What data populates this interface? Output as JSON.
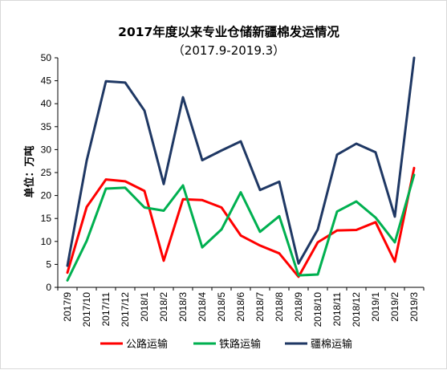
{
  "chart_data": {
    "type": "line",
    "title": "2017年度以来专业仓储新疆棉发运情况",
    "subtitle": "（2017.9-2019.3）",
    "ylabel": "单位：万吨",
    "xlabel": "",
    "ylim": [
      0,
      50
    ],
    "yticks": [
      0,
      5,
      10,
      15,
      20,
      25,
      30,
      35,
      40,
      45,
      50
    ],
    "grid": false,
    "legend": "bottom",
    "categories": [
      "2017/9",
      "2017/10",
      "2017/11",
      "2017/12",
      "2018/1",
      "2018/2",
      "2018/3",
      "2018/4",
      "2018/5",
      "2018/6",
      "2018/7",
      "2018/8",
      "2018/9",
      "2018/10",
      "2018/11",
      "2018/12",
      "2019/1",
      "2019/2",
      "2019/3"
    ],
    "series": [
      {
        "name": "公路运输",
        "color": "#ff0000",
        "values": [
          3.2,
          17.5,
          23.5,
          23.1,
          21.0,
          5.8,
          19.2,
          19.0,
          17.4,
          11.3,
          9.1,
          7.4,
          2.3,
          9.8,
          12.4,
          12.5,
          14.2,
          5.6,
          26.0
        ]
      },
      {
        "name": "铁路运输",
        "color": "#00b050",
        "values": [
          1.5,
          10.1,
          21.5,
          21.7,
          17.4,
          16.7,
          22.2,
          8.7,
          12.6,
          20.7,
          12.1,
          15.5,
          2.6,
          2.8,
          16.5,
          18.7,
          15.2,
          9.8,
          24.5
        ]
      },
      {
        "name": "疆棉运输",
        "color": "#1f3864",
        "values": [
          4.7,
          27.6,
          44.9,
          44.6,
          38.5,
          22.5,
          41.4,
          27.7,
          29.8,
          31.8,
          21.2,
          23.0,
          5.2,
          12.6,
          28.9,
          31.3,
          29.4,
          15.4,
          50.0
        ]
      }
    ]
  }
}
